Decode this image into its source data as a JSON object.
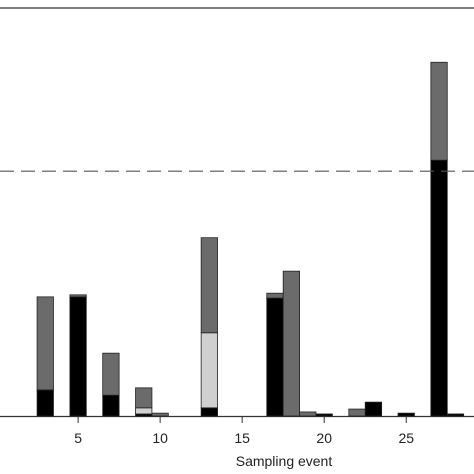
{
  "chart_data": {
    "type": "stacked-bar",
    "x_label": "Sampling event",
    "x": [
      3,
      5,
      7,
      9,
      10,
      13,
      17,
      18,
      19,
      20,
      22,
      23,
      25,
      27,
      28
    ],
    "series": [
      {
        "color": "#000000",
        "values": [
          6.4,
          29.2,
          5.1,
          0.5,
          0,
          2.0,
          28.9,
          0,
          0,
          0.5,
          0,
          3.4,
          0.7,
          62.7,
          0.5
        ]
      },
      {
        "color": "#d0d0d0",
        "values": [
          0,
          0,
          0,
          1.5,
          0,
          18.4,
          0,
          0,
          0,
          0,
          0,
          0,
          0,
          0,
          0
        ]
      },
      {
        "color": "#6b6b6b",
        "values": [
          22.8,
          0.5,
          10.3,
          4.9,
          0.7,
          23.3,
          1.2,
          35.5,
          1.0,
          0,
          1.7,
          0,
          0,
          24.0,
          0
        ]
      }
    ],
    "bar_width": 1,
    "reference_line": 60,
    "xlim": [
      0.24,
      29.13
    ],
    "xticks": [
      5,
      10,
      15,
      20,
      25
    ],
    "ylim": [
      0,
      100
    ]
  }
}
